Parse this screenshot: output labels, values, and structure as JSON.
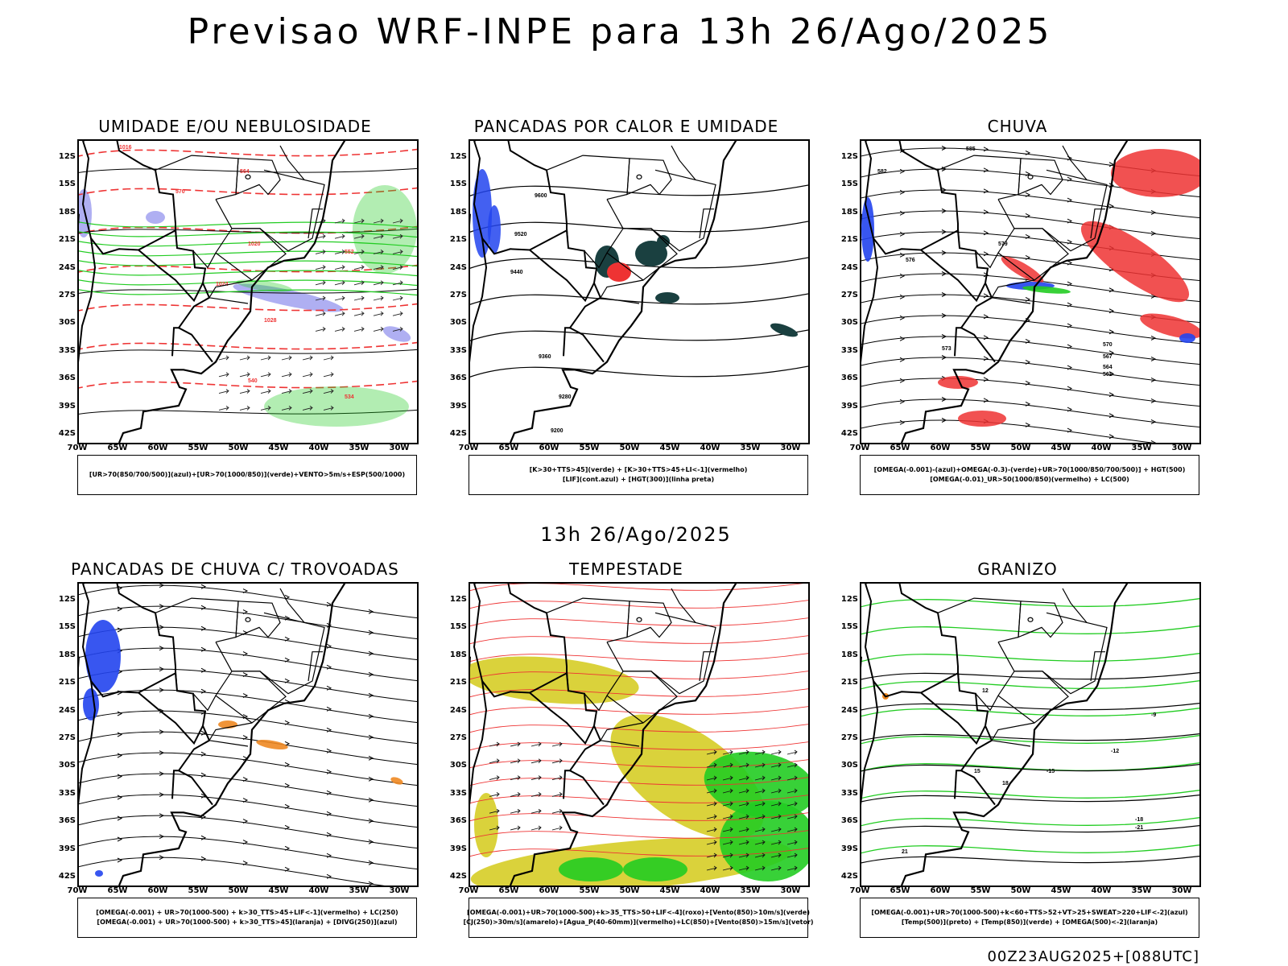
{
  "header": {
    "title": "Previsao WRF-INPE  para 13h 26/Ago/2025"
  },
  "middle": {
    "title": "13h 26/Ago/2025"
  },
  "footer": {
    "run": "00Z23AUG2025+[088UTC]"
  },
  "axes": {
    "lat_labels": [
      "12S",
      "15S",
      "18S",
      "21S",
      "24S",
      "27S",
      "30S",
      "33S",
      "36S",
      "39S",
      "42S"
    ],
    "lon_labels": [
      "70W",
      "65W",
      "60W",
      "55W",
      "50W",
      "45W",
      "40W",
      "35W",
      "30W"
    ]
  },
  "panels": [
    {
      "title": "UMIDADE E/OU NEBULOSIDADE",
      "legend": [
        "[UR>70(850/700/500)](azul)+[UR>70(1000/850)](verde)+VENTO>5m/s+ESP(500/1000)"
      ],
      "contour_labels": [
        "1016",
        "1020",
        "1024",
        "1028",
        "570",
        "552",
        "540",
        "534",
        "564"
      ],
      "colors": {
        "humid_upper": "#9b9bef",
        "humid_low": "#22cc22",
        "thickness": "#ee3333",
        "pressure": "#000000"
      }
    },
    {
      "title": "PANCADAS POR CALOR E UMIDADE",
      "legend": [
        "[K>30+TTS>45](verde) + [K>30+TTS>45+LI<-1](vermelho)",
        "[LIF](cont.azul) + [HGT(300)](linha preta)"
      ],
      "contour_labels": [
        "9600",
        "9520",
        "9440",
        "9360",
        "9280",
        "9200"
      ],
      "colors": {
        "heat": "#1a4040",
        "severe": "#ee3333",
        "lif": "#2244ee"
      }
    },
    {
      "title": "CHUVA",
      "legend": [
        "[OMEGA(-0.001)-(azul)+OMEGA(-0.3)-(verde)+UR>70(1000/850/700/500)] + HGT(500)",
        "[OMEGA(-0.01)_UR>50(1000/850)(vermelho) + LC(500)"
      ],
      "contour_labels": [
        "585",
        "582",
        "579",
        "576",
        "573",
        "570",
        "567",
        "564",
        "561"
      ],
      "colors": {
        "rain": "#ee3333",
        "omega": "#2244ee",
        "green": "#22cc22"
      }
    },
    {
      "title": "PANCADAS DE CHUVA C/ TROVOADAS",
      "legend": [
        "[OMEGA(-0.001) + UR>70(1000-500) + k>30_TTS>45+LIF<-1](vermelho) + LC(250)",
        "[OMEGA(-0.001) + UR>70(1000-500) + k>30_TTS>45](laranja) + [DIVG(250)](azul)"
      ],
      "contour_labels": [],
      "colors": {
        "storm": "#2244ee",
        "orange": "#ee8822"
      }
    },
    {
      "title": "TEMPESTADE",
      "legend": [
        "[OMEGA(-0.001)+UR>70(1000-500)+k>35_TTS>50+LIF<-4](roxo)+[Vento(850)>10m/s](verde)",
        "[CJ(250)>30m/s](amarelo)+[Agua_P(40-60mm)](vermelho)+LC(850)+[Vento(850)>15m/s](vetor)"
      ],
      "contour_labels": [],
      "colors": {
        "jet": "#d8d030",
        "wind": "#22cc22",
        "stream": "#ee3333"
      }
    },
    {
      "title": "GRANIZO",
      "legend": [
        "[OMEGA(-0.001)+UR>70(1000-500)+k<60+TTS>52+VT>25+SWEAT>220+LIF<-2](azul)",
        "[Temp(500)](preto) + [Temp(850)](verde) + [OMEGA(500)<-2](laranja)"
      ],
      "contour_labels": [
        "-9",
        "-12",
        "-15",
        "-18",
        "-21",
        "12",
        "15",
        "18",
        "21"
      ],
      "colors": {
        "t850": "#22cc22",
        "t500": "#000000"
      }
    }
  ]
}
